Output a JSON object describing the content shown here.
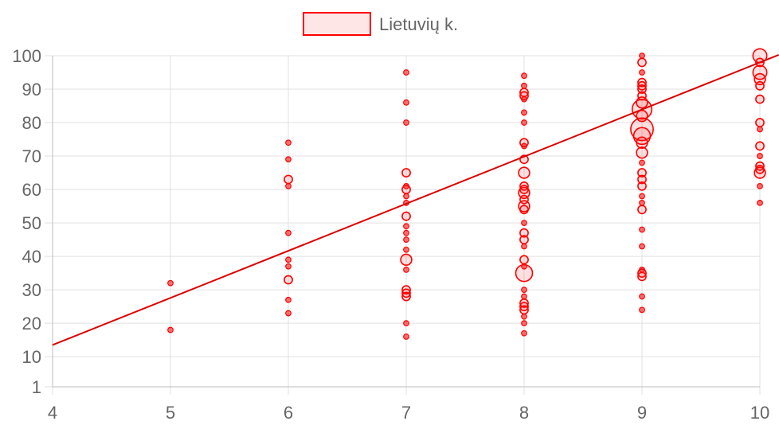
{
  "chart_data": {
    "type": "bubble",
    "legend": {
      "position": "top",
      "label": "Lietuvių k."
    },
    "colors": {
      "series": "#ff0000",
      "fill": "#ffe6e6",
      "grid": "#e0e0e0",
      "regression": "#dd0000",
      "text": "#666666"
    },
    "grid": true,
    "xlim": [
      4,
      10
    ],
    "ylim": [
      1,
      100
    ],
    "x_ticks": [
      4,
      5,
      6,
      7,
      8,
      9,
      10
    ],
    "y_ticks": [
      1,
      10,
      20,
      30,
      40,
      50,
      60,
      70,
      80,
      90,
      100
    ],
    "regression_line": {
      "x": [
        4,
        10
      ],
      "y": [
        13.5,
        98
      ]
    },
    "series": [
      {
        "name": "Lietuvių k.",
        "points": [
          {
            "x": 5,
            "y": 32,
            "r": 1
          },
          {
            "x": 5,
            "y": 18,
            "r": 1
          },
          {
            "x": 6,
            "y": 74,
            "r": 1
          },
          {
            "x": 6,
            "y": 69,
            "r": 1
          },
          {
            "x": 6,
            "y": 63,
            "r": 2
          },
          {
            "x": 6,
            "y": 61,
            "r": 1
          },
          {
            "x": 6,
            "y": 47,
            "r": 1
          },
          {
            "x": 6,
            "y": 39,
            "r": 1
          },
          {
            "x": 6,
            "y": 37,
            "r": 1
          },
          {
            "x": 6,
            "y": 33,
            "r": 2
          },
          {
            "x": 6,
            "y": 27,
            "r": 1
          },
          {
            "x": 6,
            "y": 23,
            "r": 1
          },
          {
            "x": 7,
            "y": 95,
            "r": 1
          },
          {
            "x": 7,
            "y": 86,
            "r": 1
          },
          {
            "x": 7,
            "y": 80,
            "r": 1
          },
          {
            "x": 7,
            "y": 65,
            "r": 2
          },
          {
            "x": 7,
            "y": 61,
            "r": 1
          },
          {
            "x": 7,
            "y": 60,
            "r": 2
          },
          {
            "x": 7,
            "y": 58,
            "r": 1
          },
          {
            "x": 7,
            "y": 56,
            "r": 1
          },
          {
            "x": 7,
            "y": 52,
            "r": 2
          },
          {
            "x": 7,
            "y": 49,
            "r": 1
          },
          {
            "x": 7,
            "y": 47,
            "r": 1
          },
          {
            "x": 7,
            "y": 45,
            "r": 1
          },
          {
            "x": 7,
            "y": 42,
            "r": 1
          },
          {
            "x": 7,
            "y": 39,
            "r": 3
          },
          {
            "x": 7,
            "y": 36,
            "r": 1
          },
          {
            "x": 7,
            "y": 30,
            "r": 2
          },
          {
            "x": 7,
            "y": 29,
            "r": 2
          },
          {
            "x": 7,
            "y": 28,
            "r": 2
          },
          {
            "x": 7,
            "y": 20,
            "r": 1
          },
          {
            "x": 7,
            "y": 16,
            "r": 1
          },
          {
            "x": 8,
            "y": 94,
            "r": 1
          },
          {
            "x": 8,
            "y": 91,
            "r": 1
          },
          {
            "x": 8,
            "y": 89,
            "r": 2
          },
          {
            "x": 8,
            "y": 88,
            "r": 2
          },
          {
            "x": 8,
            "y": 87,
            "r": 1
          },
          {
            "x": 8,
            "y": 83,
            "r": 1
          },
          {
            "x": 8,
            "y": 80,
            "r": 1
          },
          {
            "x": 8,
            "y": 74,
            "r": 2
          },
          {
            "x": 8,
            "y": 73,
            "r": 1
          },
          {
            "x": 8,
            "y": 69,
            "r": 2
          },
          {
            "x": 8,
            "y": 65,
            "r": 3
          },
          {
            "x": 8,
            "y": 61,
            "r": 2
          },
          {
            "x": 8,
            "y": 60,
            "r": 2
          },
          {
            "x": 8,
            "y": 59,
            "r": 3
          },
          {
            "x": 8,
            "y": 57,
            "r": 2
          },
          {
            "x": 8,
            "y": 55,
            "r": 3
          },
          {
            "x": 8,
            "y": 54,
            "r": 2
          },
          {
            "x": 8,
            "y": 50,
            "r": 1
          },
          {
            "x": 8,
            "y": 47,
            "r": 2
          },
          {
            "x": 8,
            "y": 45,
            "r": 2
          },
          {
            "x": 8,
            "y": 43,
            "r": 1
          },
          {
            "x": 8,
            "y": 39,
            "r": 2
          },
          {
            "x": 8,
            "y": 37,
            "r": 1
          },
          {
            "x": 8,
            "y": 35,
            "r": 5
          },
          {
            "x": 8,
            "y": 30,
            "r": 1
          },
          {
            "x": 8,
            "y": 28,
            "r": 1
          },
          {
            "x": 8,
            "y": 26,
            "r": 2
          },
          {
            "x": 8,
            "y": 25,
            "r": 2
          },
          {
            "x": 8,
            "y": 24,
            "r": 2
          },
          {
            "x": 8,
            "y": 22,
            "r": 1
          },
          {
            "x": 8,
            "y": 20,
            "r": 1
          },
          {
            "x": 8,
            "y": 17,
            "r": 1
          },
          {
            "x": 9,
            "y": 100,
            "r": 1
          },
          {
            "x": 9,
            "y": 98,
            "r": 2
          },
          {
            "x": 9,
            "y": 95,
            "r": 1
          },
          {
            "x": 9,
            "y": 92,
            "r": 2
          },
          {
            "x": 9,
            "y": 91,
            "r": 2
          },
          {
            "x": 9,
            "y": 90,
            "r": 2
          },
          {
            "x": 9,
            "y": 88,
            "r": 2
          },
          {
            "x": 9,
            "y": 86,
            "r": 3
          },
          {
            "x": 9,
            "y": 84,
            "r": 6
          },
          {
            "x": 9,
            "y": 82,
            "r": 3
          },
          {
            "x": 9,
            "y": 78,
            "r": 7
          },
          {
            "x": 9,
            "y": 76,
            "r": 5
          },
          {
            "x": 9,
            "y": 74,
            "r": 3
          },
          {
            "x": 9,
            "y": 71,
            "r": 3
          },
          {
            "x": 9,
            "y": 68,
            "r": 1
          },
          {
            "x": 9,
            "y": 65,
            "r": 2
          },
          {
            "x": 9,
            "y": 63,
            "r": 2
          },
          {
            "x": 9,
            "y": 61,
            "r": 2
          },
          {
            "x": 9,
            "y": 58,
            "r": 1
          },
          {
            "x": 9,
            "y": 56,
            "r": 1
          },
          {
            "x": 9,
            "y": 54,
            "r": 2
          },
          {
            "x": 9,
            "y": 48,
            "r": 1
          },
          {
            "x": 9,
            "y": 43,
            "r": 1
          },
          {
            "x": 9,
            "y": 36,
            "r": 1
          },
          {
            "x": 9,
            "y": 35,
            "r": 2
          },
          {
            "x": 9,
            "y": 34,
            "r": 2
          },
          {
            "x": 9,
            "y": 28,
            "r": 1
          },
          {
            "x": 9,
            "y": 24,
            "r": 1
          },
          {
            "x": 10,
            "y": 100,
            "r": 4
          },
          {
            "x": 10,
            "y": 98,
            "r": 2
          },
          {
            "x": 10,
            "y": 95,
            "r": 4
          },
          {
            "x": 10,
            "y": 93,
            "r": 3
          },
          {
            "x": 10,
            "y": 91,
            "r": 2
          },
          {
            "x": 10,
            "y": 87,
            "r": 2
          },
          {
            "x": 10,
            "y": 80,
            "r": 2
          },
          {
            "x": 10,
            "y": 78,
            "r": 1
          },
          {
            "x": 10,
            "y": 73,
            "r": 2
          },
          {
            "x": 10,
            "y": 70,
            "r": 1
          },
          {
            "x": 10,
            "y": 67,
            "r": 2
          },
          {
            "x": 10,
            "y": 66,
            "r": 2
          },
          {
            "x": 10,
            "y": 65,
            "r": 3
          },
          {
            "x": 10,
            "y": 61,
            "r": 1
          },
          {
            "x": 10,
            "y": 56,
            "r": 1
          }
        ]
      }
    ]
  }
}
